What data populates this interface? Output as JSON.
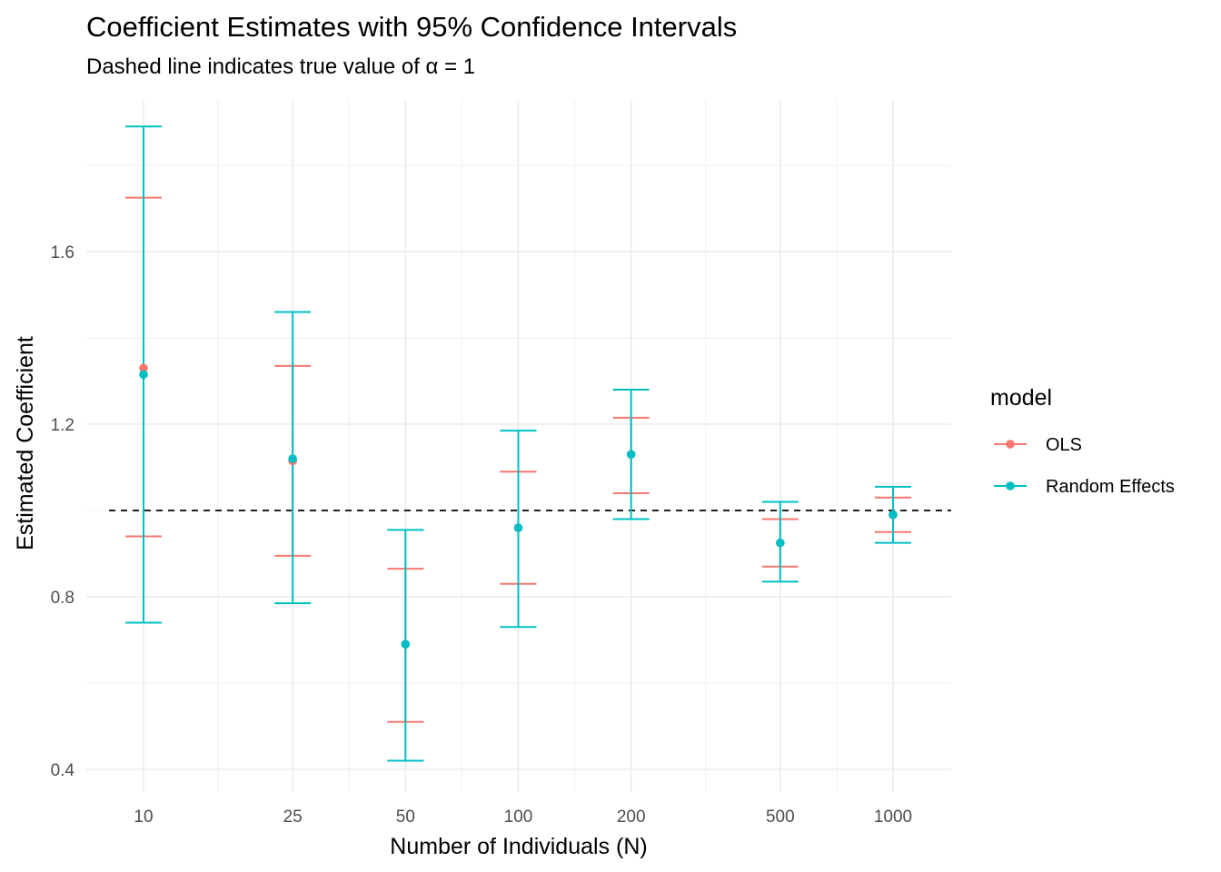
{
  "chart_data": {
    "type": "errorbar",
    "title": "Coefficient Estimates with 95% Confidence Intervals",
    "subtitle": "Dashed line indicates true value of α = 1",
    "xlabel": "Number of Individuals (N)",
    "ylabel": "Estimated Coefficient",
    "x_scale": "log10",
    "x_ticks": [
      10,
      25,
      50,
      100,
      200,
      500,
      1000
    ],
    "y_ticks": [
      0.4,
      0.8,
      1.2,
      1.6
    ],
    "y_tick_labels": [
      "0.4",
      "0.8",
      "1.2",
      "1.6"
    ],
    "ylim": [
      0.345,
      1.995
    ],
    "reference_line": {
      "y": 1.0,
      "style": "dashed"
    },
    "grid": true,
    "legend": {
      "title": "model",
      "position": "right"
    },
    "series": [
      {
        "name": "OLS",
        "color": "#F8766D",
        "points": [
          {
            "x": 10,
            "estimate": 1.33,
            "lower": 0.94,
            "upper": 1.725
          },
          {
            "x": 25,
            "estimate": 1.115,
            "lower": 0.895,
            "upper": 1.335
          },
          {
            "x": 50,
            "estimate": 0.69,
            "lower": 0.51,
            "upper": 0.865
          },
          {
            "x": 100,
            "estimate": 0.96,
            "lower": 0.83,
            "upper": 1.09
          },
          {
            "x": 200,
            "estimate": 1.13,
            "lower": 1.04,
            "upper": 1.215
          },
          {
            "x": 500,
            "estimate": 0.925,
            "lower": 0.87,
            "upper": 0.98
          },
          {
            "x": 1000,
            "estimate": 0.99,
            "lower": 0.95,
            "upper": 1.03
          }
        ]
      },
      {
        "name": "Random Effects",
        "color": "#00BFC4",
        "points": [
          {
            "x": 10,
            "estimate": 1.315,
            "lower": 0.74,
            "upper": 1.89
          },
          {
            "x": 25,
            "estimate": 1.12,
            "lower": 0.785,
            "upper": 1.46
          },
          {
            "x": 50,
            "estimate": 0.69,
            "lower": 0.42,
            "upper": 0.955
          },
          {
            "x": 100,
            "estimate": 0.96,
            "lower": 0.73,
            "upper": 1.185
          },
          {
            "x": 200,
            "estimate": 1.13,
            "lower": 0.98,
            "upper": 1.28
          },
          {
            "x": 500,
            "estimate": 0.925,
            "lower": 0.835,
            "upper": 1.02
          },
          {
            "x": 1000,
            "estimate": 0.99,
            "lower": 0.925,
            "upper": 1.055
          }
        ]
      }
    ]
  }
}
